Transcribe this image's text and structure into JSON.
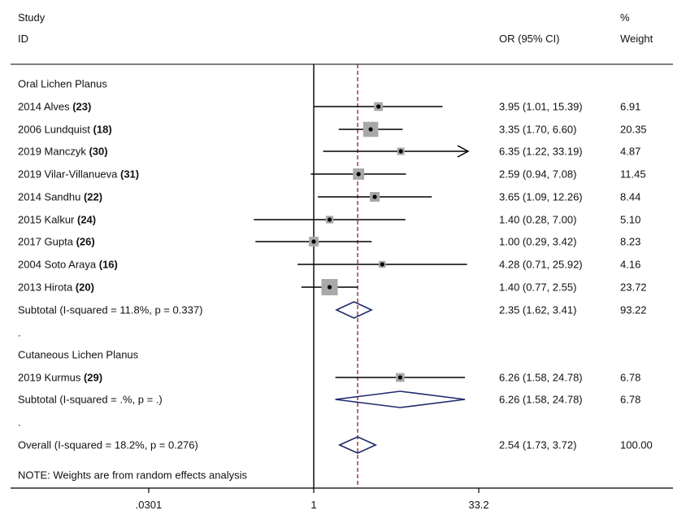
{
  "chart_data": {
    "type": "forest",
    "headers": {
      "study_line1": "Study",
      "study_line2": "ID",
      "ci": "OR (95% CI)",
      "weight_line1": "%",
      "weight_line2": "Weight"
    },
    "xscale": "log",
    "xlim": [
      0.0301,
      33.2
    ],
    "xticks": [
      0.0301,
      1,
      33.2
    ],
    "xtick_labels": [
      ".0301",
      "1",
      "33.2"
    ],
    "overall_effect_line": 2.54,
    "rows": [
      {
        "kind": "group",
        "label": "Oral Lichen Planus"
      },
      {
        "kind": "study",
        "label": "2014 Alves",
        "ref": "(23)",
        "or": 3.95,
        "lo": 1.01,
        "hi": 15.39,
        "ci_text": "3.95 (1.01, 15.39)",
        "weight": 6.91,
        "weight_text": "6.91"
      },
      {
        "kind": "study",
        "label": "2006 Lundquist",
        "ref": "(18)",
        "or": 3.35,
        "lo": 1.7,
        "hi": 6.6,
        "ci_text": "3.35 (1.70, 6.60)",
        "weight": 20.35,
        "weight_text": "20.35"
      },
      {
        "kind": "study",
        "label": "2019 Manczyk",
        "ref": "(30)",
        "or": 6.35,
        "lo": 1.22,
        "hi": 33.19,
        "ci_text": "6.35 (1.22, 33.19)",
        "weight": 4.87,
        "weight_text": "4.87",
        "arrow": true
      },
      {
        "kind": "study",
        "label": "2019 Vilar-Villanueva",
        "ref": "(31)",
        "or": 2.59,
        "lo": 0.94,
        "hi": 7.08,
        "ci_text": "2.59 (0.94, 7.08)",
        "weight": 11.45,
        "weight_text": "11.45"
      },
      {
        "kind": "study",
        "label": "2014 Sandhu",
        "ref": "(22)",
        "or": 3.65,
        "lo": 1.09,
        "hi": 12.26,
        "ci_text": "3.65 (1.09, 12.26)",
        "weight": 8.44,
        "weight_text": "8.44"
      },
      {
        "kind": "study",
        "label": "2015 Kalkur",
        "ref": "(24)",
        "or": 1.4,
        "lo": 0.28,
        "hi": 7.0,
        "ci_text": "1.40 (0.28, 7.00)",
        "weight": 5.1,
        "weight_text": "5.10"
      },
      {
        "kind": "study",
        "label": "2017 Gupta",
        "ref": "(26)",
        "or": 1.0,
        "lo": 0.29,
        "hi": 3.42,
        "ci_text": "1.00 (0.29, 3.42)",
        "weight": 8.23,
        "weight_text": "8.23"
      },
      {
        "kind": "study",
        "label": "2004 Soto Araya",
        "ref": "(16)",
        "or": 4.28,
        "lo": 0.71,
        "hi": 25.92,
        "ci_text": "4.28 (0.71, 25.92)",
        "weight": 4.16,
        "weight_text": "4.16"
      },
      {
        "kind": "study",
        "label": "2013 Hirota",
        "ref": "(20)",
        "or": 1.4,
        "lo": 0.77,
        "hi": 2.55,
        "ci_text": "1.40 (0.77, 2.55)",
        "weight": 23.72,
        "weight_text": "23.72"
      },
      {
        "kind": "subtotal",
        "label": "Subtotal  (I-squared = 11.8%, p = 0.337)",
        "or": 2.35,
        "lo": 1.62,
        "hi": 3.41,
        "ci_text": "2.35 (1.62, 3.41)",
        "weight_text": "93.22"
      },
      {
        "kind": "dot",
        "label": "."
      },
      {
        "kind": "group",
        "label": "Cutaneous Lichen Planus"
      },
      {
        "kind": "study",
        "label": "2019 Kurmus",
        "ref": "(29)",
        "or": 6.26,
        "lo": 1.58,
        "hi": 24.78,
        "ci_text": "6.26 (1.58, 24.78)",
        "weight": 6.78,
        "weight_text": "6.78"
      },
      {
        "kind": "subtotal",
        "label": "Subtotal  (I-squared = .%, p = .)",
        "or": 6.26,
        "lo": 1.58,
        "hi": 24.78,
        "ci_text": "6.26 (1.58, 24.78)",
        "weight_text": "6.78"
      },
      {
        "kind": "dot",
        "label": "."
      },
      {
        "kind": "overall",
        "label": "Overall  (I-squared = 18.2%, p = 0.276)",
        "or": 2.54,
        "lo": 1.73,
        "hi": 3.72,
        "ci_text": "2.54 (1.73, 3.72)",
        "weight_text": "100.00"
      },
      {
        "kind": "note",
        "label": "NOTE: Weights are from random effects analysis"
      }
    ],
    "colors": {
      "diamond": "#1f2a6b",
      "effect_line": "#9b1c1c",
      "box": "#a8a8a8",
      "line": "#000000"
    }
  }
}
